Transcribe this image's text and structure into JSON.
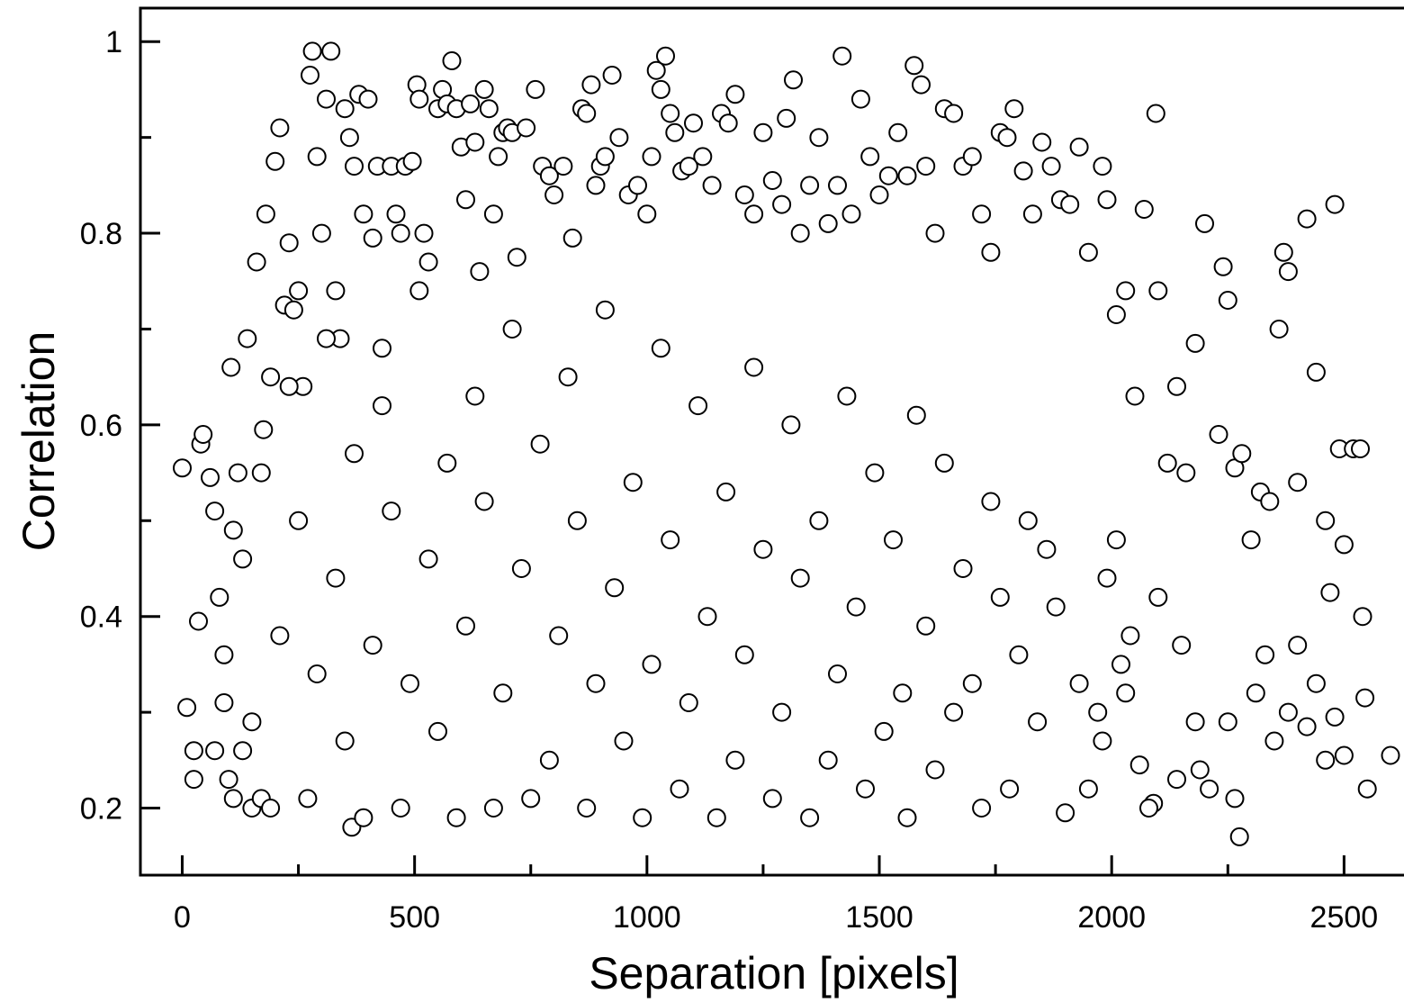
{
  "chart_data": {
    "type": "scatter",
    "title": "",
    "xlabel": "Separation [pixels]",
    "ylabel": "Correlation",
    "xlim": [
      -90,
      2660
    ],
    "ylim": [
      0.13,
      1.035
    ],
    "xticks": [
      0,
      500,
      1000,
      1500,
      2000,
      2500
    ],
    "xtick_labels": [
      "0",
      "500",
      "1000",
      "1500",
      "2000",
      "2500"
    ],
    "yticks": [
      0.2,
      0.4,
      0.6,
      0.8,
      1.0
    ],
    "ytick_labels": [
      "0.2",
      "0.4",
      "0.6",
      "0.8",
      "1"
    ],
    "minor_xticks": [
      250,
      750,
      1250,
      1750,
      2250
    ],
    "minor_yticks": [
      0.3,
      0.5,
      0.7,
      0.9
    ],
    "grid": false,
    "legend": "none",
    "marker": "open-circle",
    "marker_face": "#ffffff",
    "marker_edge": "#000000",
    "series": [
      {
        "points": [
          [
            0,
            0.555
          ],
          [
            10,
            0.305
          ],
          [
            25,
            0.26
          ],
          [
            25,
            0.23
          ],
          [
            35,
            0.395
          ],
          [
            40,
            0.58
          ],
          [
            45,
            0.59
          ],
          [
            60,
            0.545
          ],
          [
            70,
            0.51
          ],
          [
            80,
            0.42
          ],
          [
            90,
            0.36
          ],
          [
            100,
            0.23
          ],
          [
            105,
            0.66
          ],
          [
            110,
            0.21
          ],
          [
            120,
            0.55
          ],
          [
            130,
            0.26
          ],
          [
            140,
            0.69
          ],
          [
            150,
            0.2
          ],
          [
            160,
            0.77
          ],
          [
            170,
            0.21
          ],
          [
            175,
            0.595
          ],
          [
            180,
            0.82
          ],
          [
            190,
            0.65
          ],
          [
            200,
            0.875
          ],
          [
            210,
            0.91
          ],
          [
            220,
            0.725
          ],
          [
            230,
            0.79
          ],
          [
            240,
            0.72
          ],
          [
            250,
            0.74
          ],
          [
            260,
            0.64
          ],
          [
            275,
            0.965
          ],
          [
            280,
            0.99
          ],
          [
            290,
            0.88
          ],
          [
            300,
            0.8
          ],
          [
            310,
            0.94
          ],
          [
            320,
            0.99
          ],
          [
            330,
            0.74
          ],
          [
            340,
            0.69
          ],
          [
            350,
            0.93
          ],
          [
            360,
            0.9
          ],
          [
            365,
            0.18
          ],
          [
            370,
            0.87
          ],
          [
            380,
            0.945
          ],
          [
            390,
            0.82
          ],
          [
            400,
            0.94
          ],
          [
            410,
            0.795
          ],
          [
            420,
            0.87
          ],
          [
            430,
            0.68
          ],
          [
            450,
            0.87
          ],
          [
            460,
            0.82
          ],
          [
            470,
            0.8
          ],
          [
            480,
            0.87
          ],
          [
            495,
            0.875
          ],
          [
            505,
            0.955
          ],
          [
            510,
            0.94
          ],
          [
            520,
            0.8
          ],
          [
            530,
            0.77
          ],
          [
            550,
            0.93
          ],
          [
            560,
            0.95
          ],
          [
            570,
            0.935
          ],
          [
            580,
            0.98
          ],
          [
            590,
            0.93
          ],
          [
            600,
            0.89
          ],
          [
            610,
            0.835
          ],
          [
            620,
            0.935
          ],
          [
            630,
            0.895
          ],
          [
            640,
            0.76
          ],
          [
            650,
            0.95
          ],
          [
            660,
            0.93
          ],
          [
            670,
            0.82
          ],
          [
            680,
            0.88
          ],
          [
            690,
            0.905
          ],
          [
            700,
            0.91
          ],
          [
            710,
            0.905
          ],
          [
            720,
            0.775
          ],
          [
            740,
            0.91
          ],
          [
            760,
            0.95
          ],
          [
            775,
            0.87
          ],
          [
            790,
            0.86
          ],
          [
            800,
            0.84
          ],
          [
            820,
            0.87
          ],
          [
            840,
            0.795
          ],
          [
            860,
            0.93
          ],
          [
            870,
            0.925
          ],
          [
            880,
            0.955
          ],
          [
            890,
            0.85
          ],
          [
            900,
            0.87
          ],
          [
            910,
            0.88
          ],
          [
            925,
            0.965
          ],
          [
            940,
            0.9
          ],
          [
            960,
            0.84
          ],
          [
            980,
            0.85
          ],
          [
            1000,
            0.82
          ],
          [
            1010,
            0.88
          ],
          [
            1020,
            0.97
          ],
          [
            1030,
            0.95
          ],
          [
            1040,
            0.985
          ],
          [
            1050,
            0.925
          ],
          [
            1060,
            0.905
          ],
          [
            1075,
            0.865
          ],
          [
            1090,
            0.87
          ],
          [
            1100,
            0.915
          ],
          [
            1120,
            0.88
          ],
          [
            1140,
            0.85
          ],
          [
            1160,
            0.925
          ],
          [
            1175,
            0.915
          ],
          [
            1190,
            0.945
          ],
          [
            1210,
            0.84
          ],
          [
            1230,
            0.82
          ],
          [
            1250,
            0.905
          ],
          [
            1270,
            0.855
          ],
          [
            1290,
            0.83
          ],
          [
            1300,
            0.92
          ],
          [
            1315,
            0.96
          ],
          [
            1330,
            0.8
          ],
          [
            1350,
            0.85
          ],
          [
            1370,
            0.9
          ],
          [
            1390,
            0.81
          ],
          [
            1410,
            0.85
          ],
          [
            1420,
            0.985
          ],
          [
            1440,
            0.82
          ],
          [
            1460,
            0.94
          ],
          [
            1480,
            0.88
          ],
          [
            1500,
            0.84
          ],
          [
            1520,
            0.86
          ],
          [
            1540,
            0.905
          ],
          [
            1560,
            0.86
          ],
          [
            1575,
            0.975
          ],
          [
            1590,
            0.955
          ],
          [
            1600,
            0.87
          ],
          [
            1620,
            0.8
          ],
          [
            1640,
            0.93
          ],
          [
            1660,
            0.925
          ],
          [
            1680,
            0.87
          ],
          [
            1700,
            0.88
          ],
          [
            1720,
            0.82
          ],
          [
            1740,
            0.78
          ],
          [
            1760,
            0.905
          ],
          [
            1775,
            0.9
          ],
          [
            1790,
            0.93
          ],
          [
            1810,
            0.865
          ],
          [
            1830,
            0.82
          ],
          [
            1850,
            0.895
          ],
          [
            1870,
            0.87
          ],
          [
            1890,
            0.835
          ],
          [
            1910,
            0.83
          ],
          [
            1930,
            0.89
          ],
          [
            1950,
            0.78
          ],
          [
            1980,
            0.87
          ],
          [
            1990,
            0.835
          ],
          [
            2010,
            0.715
          ],
          [
            2030,
            0.74
          ],
          [
            2050,
            0.63
          ],
          [
            2070,
            0.825
          ],
          [
            2095,
            0.925
          ],
          [
            2100,
            0.74
          ],
          [
            2120,
            0.56
          ],
          [
            2140,
            0.64
          ],
          [
            2160,
            0.55
          ],
          [
            2180,
            0.685
          ],
          [
            2200,
            0.81
          ],
          [
            2230,
            0.59
          ],
          [
            2240,
            0.765
          ],
          [
            2250,
            0.73
          ],
          [
            2265,
            0.555
          ],
          [
            2280,
            0.57
          ],
          [
            2300,
            0.48
          ],
          [
            2320,
            0.53
          ],
          [
            2340,
            0.52
          ],
          [
            2360,
            0.7
          ],
          [
            2370,
            0.78
          ],
          [
            2380,
            0.76
          ],
          [
            2400,
            0.54
          ],
          [
            2420,
            0.815
          ],
          [
            2440,
            0.655
          ],
          [
            2460,
            0.5
          ],
          [
            2470,
            0.425
          ],
          [
            2480,
            0.83
          ],
          [
            2490,
            0.575
          ],
          [
            2500,
            0.475
          ],
          [
            2520,
            0.575
          ],
          [
            2535,
            0.575
          ],
          [
            2540,
            0.4
          ],
          [
            2545,
            0.315
          ],
          [
            2550,
            0.22
          ],
          [
            2600,
            0.255
          ],
          [
            2275,
            0.17
          ],
          [
            2265,
            0.21
          ],
          [
            2250,
            0.29
          ],
          [
            2310,
            0.32
          ],
          [
            2330,
            0.36
          ],
          [
            2350,
            0.27
          ],
          [
            2380,
            0.3
          ],
          [
            2400,
            0.37
          ],
          [
            2420,
            0.285
          ],
          [
            2440,
            0.33
          ],
          [
            2460,
            0.25
          ],
          [
            2480,
            0.295
          ],
          [
            2500,
            0.255
          ],
          [
            2210,
            0.22
          ],
          [
            2190,
            0.24
          ],
          [
            2180,
            0.29
          ],
          [
            2150,
            0.37
          ],
          [
            2140,
            0.23
          ],
          [
            2100,
            0.42
          ],
          [
            2090,
            0.205
          ],
          [
            2080,
            0.2
          ],
          [
            2060,
            0.245
          ],
          [
            2040,
            0.38
          ],
          [
            2030,
            0.32
          ],
          [
            2020,
            0.35
          ],
          [
            2010,
            0.48
          ],
          [
            1990,
            0.44
          ],
          [
            1980,
            0.27
          ],
          [
            1970,
            0.3
          ],
          [
            1950,
            0.22
          ],
          [
            1930,
            0.33
          ],
          [
            1900,
            0.195
          ],
          [
            1880,
            0.41
          ],
          [
            1860,
            0.47
          ],
          [
            1840,
            0.29
          ],
          [
            1820,
            0.5
          ],
          [
            1800,
            0.36
          ],
          [
            1780,
            0.22
          ],
          [
            1760,
            0.42
          ],
          [
            1740,
            0.52
          ],
          [
            1720,
            0.2
          ],
          [
            1700,
            0.33
          ],
          [
            1680,
            0.45
          ],
          [
            1660,
            0.3
          ],
          [
            1640,
            0.56
          ],
          [
            1620,
            0.24
          ],
          [
            1600,
            0.39
          ],
          [
            1580,
            0.61
          ],
          [
            1560,
            0.19
          ],
          [
            1550,
            0.32
          ],
          [
            1530,
            0.48
          ],
          [
            1510,
            0.28
          ],
          [
            1490,
            0.55
          ],
          [
            1470,
            0.22
          ],
          [
            1450,
            0.41
          ],
          [
            1430,
            0.63
          ],
          [
            1410,
            0.34
          ],
          [
            1390,
            0.25
          ],
          [
            1370,
            0.5
          ],
          [
            1350,
            0.19
          ],
          [
            1330,
            0.44
          ],
          [
            1310,
            0.6
          ],
          [
            1290,
            0.3
          ],
          [
            1270,
            0.21
          ],
          [
            1250,
            0.47
          ],
          [
            1230,
            0.66
          ],
          [
            1210,
            0.36
          ],
          [
            1190,
            0.25
          ],
          [
            1170,
            0.53
          ],
          [
            1150,
            0.19
          ],
          [
            1130,
            0.4
          ],
          [
            1110,
            0.62
          ],
          [
            1090,
            0.31
          ],
          [
            1070,
            0.22
          ],
          [
            1050,
            0.48
          ],
          [
            1030,
            0.68
          ],
          [
            1010,
            0.35
          ],
          [
            990,
            0.19
          ],
          [
            970,
            0.54
          ],
          [
            950,
            0.27
          ],
          [
            930,
            0.43
          ],
          [
            910,
            0.72
          ],
          [
            890,
            0.33
          ],
          [
            870,
            0.2
          ],
          [
            850,
            0.5
          ],
          [
            830,
            0.65
          ],
          [
            810,
            0.38
          ],
          [
            790,
            0.25
          ],
          [
            770,
            0.58
          ],
          [
            750,
            0.21
          ],
          [
            730,
            0.45
          ],
          [
            710,
            0.7
          ],
          [
            690,
            0.32
          ],
          [
            670,
            0.2
          ],
          [
            650,
            0.52
          ],
          [
            630,
            0.63
          ],
          [
            610,
            0.39
          ],
          [
            590,
            0.19
          ],
          [
            570,
            0.56
          ],
          [
            550,
            0.28
          ],
          [
            530,
            0.46
          ],
          [
            510,
            0.74
          ],
          [
            490,
            0.33
          ],
          [
            470,
            0.2
          ],
          [
            450,
            0.51
          ],
          [
            430,
            0.62
          ],
          [
            410,
            0.37
          ],
          [
            390,
            0.19
          ],
          [
            370,
            0.57
          ],
          [
            350,
            0.27
          ],
          [
            330,
            0.44
          ],
          [
            310,
            0.69
          ],
          [
            290,
            0.34
          ],
          [
            270,
            0.21
          ],
          [
            250,
            0.5
          ],
          [
            230,
            0.64
          ],
          [
            210,
            0.38
          ],
          [
            190,
            0.2
          ],
          [
            170,
            0.55
          ],
          [
            150,
            0.29
          ],
          [
            130,
            0.46
          ],
          [
            110,
            0.49
          ],
          [
            90,
            0.31
          ],
          [
            70,
            0.26
          ]
        ]
      }
    ]
  }
}
